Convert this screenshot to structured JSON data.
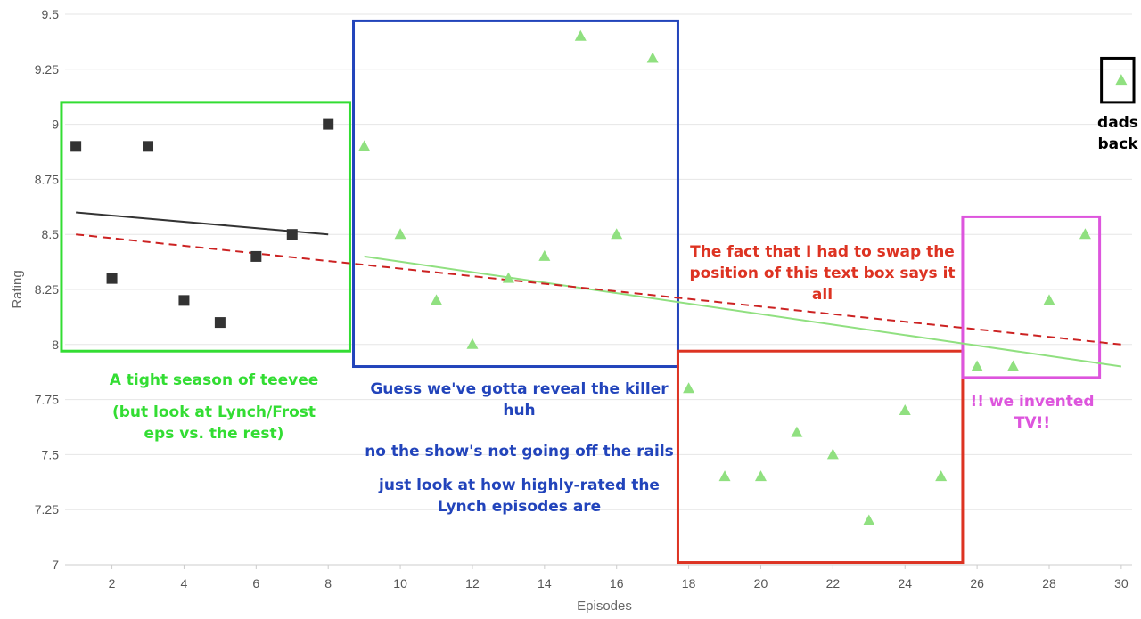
{
  "chart_data": {
    "type": "scatter",
    "xlabel": "Episodes",
    "ylabel": "Rating",
    "xlim": [
      0.7,
      30.3
    ],
    "ylim": [
      7,
      9.5
    ],
    "x_ticks": [
      "2",
      "4",
      "6",
      "8",
      "10",
      "12",
      "14",
      "16",
      "18",
      "20",
      "22",
      "24",
      "26",
      "28",
      "30"
    ],
    "y_ticks": [
      "7",
      "7.25",
      "7.5",
      "7.75",
      "8",
      "8.25",
      "8.5",
      "8.75",
      "9",
      "9.25",
      "9.5"
    ],
    "grid": "horizontal",
    "series": [
      {
        "marker": "square",
        "color": "#333333",
        "points": [
          [
            1,
            8.9
          ],
          [
            2,
            8.3
          ],
          [
            3,
            8.9
          ],
          [
            4,
            8.2
          ],
          [
            5,
            8.1
          ],
          [
            6,
            8.4
          ],
          [
            7,
            8.5
          ],
          [
            8,
            9.0
          ]
        ]
      },
      {
        "marker": "triangle",
        "color": "#90e080",
        "points": [
          [
            9,
            8.9
          ],
          [
            10,
            8.5
          ],
          [
            11,
            8.2
          ],
          [
            12,
            8.0
          ],
          [
            13,
            8.3
          ],
          [
            14,
            8.4
          ],
          [
            15,
            9.4
          ],
          [
            16,
            8.5
          ],
          [
            17,
            9.3
          ],
          [
            18,
            7.8
          ],
          [
            19,
            7.4
          ],
          [
            20,
            7.4
          ],
          [
            21,
            7.6
          ],
          [
            22,
            7.5
          ],
          [
            23,
            7.2
          ],
          [
            24,
            7.7
          ],
          [
            25,
            7.4
          ],
          [
            26,
            7.9
          ],
          [
            27,
            7.9
          ],
          [
            28,
            8.2
          ],
          [
            29,
            8.5
          ],
          [
            30,
            9.2
          ]
        ]
      }
    ],
    "trendlines": [
      {
        "color": "#333333",
        "style": "solid",
        "from": [
          1,
          8.6
        ],
        "to": [
          8,
          8.5
        ]
      },
      {
        "color": "#90e080",
        "style": "solid",
        "from": [
          9,
          8.4
        ],
        "to": [
          30,
          7.9
        ]
      },
      {
        "color": "#cc2222",
        "style": "dashed",
        "from": [
          1,
          8.5
        ],
        "to": [
          30,
          8.0
        ]
      }
    ],
    "boxes": [
      {
        "color": "#33dd33",
        "x0": 0.6,
        "x1": 8.6,
        "y0": 7.97,
        "y1": 9.1
      },
      {
        "color": "#2244bb",
        "x0": 8.7,
        "x1": 17.7,
        "y0": 7.9,
        "y1": 9.47
      },
      {
        "color": "#dd3322",
        "x0": 17.7,
        "x1": 25.6,
        "y0": 7.01,
        "y1": 7.97
      },
      {
        "color": "#dd55dd",
        "x0": 25.6,
        "x1": 29.4,
        "y0": 7.85,
        "y1": 8.58
      },
      {
        "color": "#000000",
        "x0": 29.45,
        "x1": 30.35,
        "y0": 9.1,
        "y1": 9.3
      }
    ]
  },
  "annotations": {
    "green": {
      "line1": "A tight season of teevee",
      "line2": "(but look at Lynch/Frost",
      "line3": "eps vs. the rest)",
      "color": "#33dd33"
    },
    "blue": {
      "line1": "Guess we've gotta reveal the killer",
      "line2": "huh",
      "line3": "no the show's not going off the rails",
      "line4": "just look at how highly-rated the",
      "line5": "Lynch episodes are",
      "color": "#2244bb"
    },
    "red": {
      "line1": "The fact that I had to swap the",
      "line2": "position of this text box says it",
      "line3": "all",
      "color": "#dd3322"
    },
    "pink": {
      "line1": "!! we invented",
      "line2": "TV!!",
      "color": "#dd55dd"
    },
    "black": {
      "line1": "dads",
      "line2": "back",
      "color": "#000000"
    }
  }
}
